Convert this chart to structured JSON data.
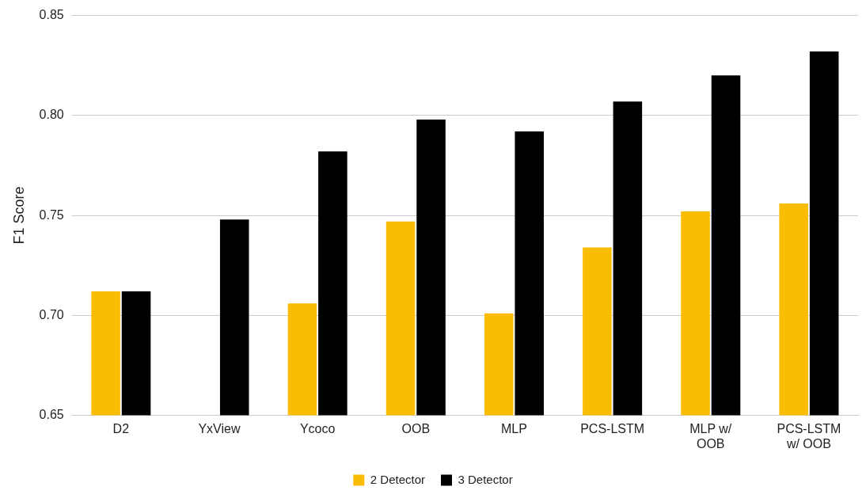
{
  "chart_data": {
    "type": "bar",
    "ylabel": "F1 Score",
    "categories": [
      "D2",
      "YxView",
      "Ycoco",
      "OOB",
      "MLP",
      "PCS-LSTM",
      "MLP w/ OOB",
      "PCS-LSTM w/ OOB"
    ],
    "series": [
      {
        "name": "2 Detector",
        "color": "#fbbc04",
        "values": [
          0.712,
          null,
          0.706,
          0.747,
          0.701,
          0.734,
          0.752,
          0.756
        ]
      },
      {
        "name": "3 Detector",
        "color": "#000000",
        "values": [
          0.712,
          0.748,
          0.782,
          0.798,
          0.792,
          0.807,
          0.82,
          0.832
        ]
      }
    ],
    "ylim": [
      0.65,
      0.85
    ],
    "yticks": [
      {
        "value": 0.65,
        "label": "0.65"
      },
      {
        "value": 0.7,
        "label": "0.70"
      },
      {
        "value": 0.75,
        "label": "0.75"
      },
      {
        "value": 0.8,
        "label": "0.80"
      },
      {
        "value": 0.85,
        "label": "0.85"
      }
    ],
    "grid": "y",
    "legend": "bottom"
  }
}
